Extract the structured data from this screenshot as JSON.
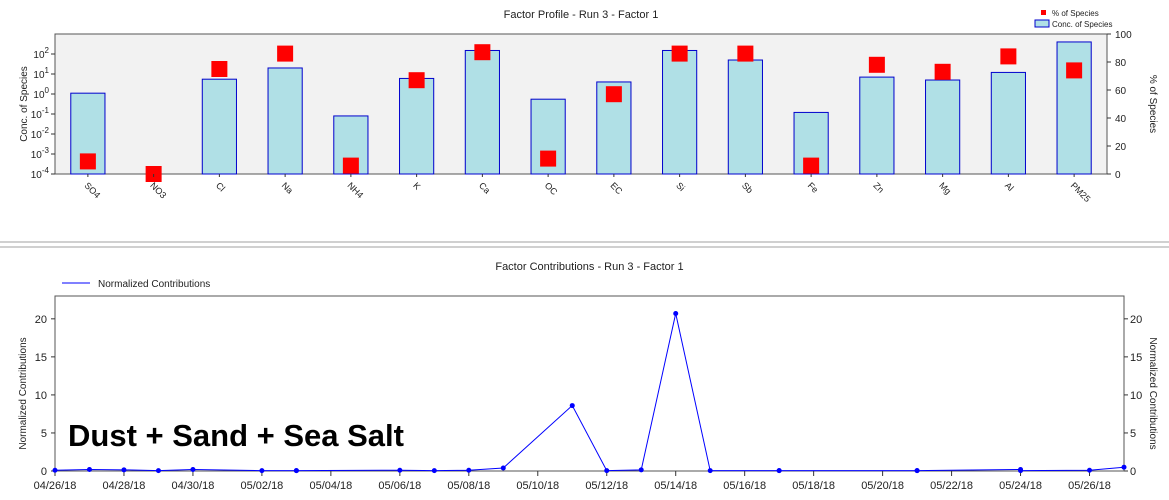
{
  "overlay_label": "Dust + Sand + Sea Salt",
  "colors": {
    "bar_fill": "#b0e0e6",
    "bar_stroke": "#0000cd",
    "marker": "#ff0000",
    "line": "#0000ff",
    "plot_bg": "#f2f2f2"
  },
  "chart_data": [
    {
      "type": "bar",
      "title": "Factor Profile - Run 3 - Factor 1",
      "ylabel": "Conc. of Species",
      "y2label": "% of Species",
      "yscale": "log",
      "ylim": [
        0.0001,
        1000
      ],
      "y_ticks": [
        {
          "value": 0.0001,
          "base": "10",
          "exp": "-4"
        },
        {
          "value": 0.001,
          "base": "10",
          "exp": "-3"
        },
        {
          "value": 0.01,
          "base": "10",
          "exp": "-2"
        },
        {
          "value": 0.1,
          "base": "10",
          "exp": "-1"
        },
        {
          "value": 1,
          "base": "10",
          "exp": "0"
        },
        {
          "value": 10,
          "base": "10",
          "exp": "1"
        },
        {
          "value": 100,
          "base": "10",
          "exp": "2"
        }
      ],
      "y2lim": [
        0,
        100
      ],
      "y2_ticks": [
        "0",
        "20",
        "40",
        "60",
        "80",
        "100"
      ],
      "categories": [
        "SO4",
        "NO3",
        "Cl",
        "Na",
        "NH4",
        "K",
        "Ca",
        "OC",
        "EC",
        "Si",
        "Sb",
        "Fe",
        "Zn",
        "Mg",
        "Al",
        "PM25"
      ],
      "series": [
        {
          "name": "Conc. of Species",
          "kind": "bar",
          "axis": "left",
          "values": [
            1.1,
            0.0001,
            5.5,
            20,
            0.08,
            6,
            150,
            0.55,
            4,
            150,
            50,
            0.12,
            7,
            5,
            12,
            400
          ]
        },
        {
          "name": "% of Species",
          "kind": "marker",
          "axis": "right",
          "values": [
            9,
            0,
            75,
            86,
            6,
            67,
            87,
            11,
            57,
            86,
            86,
            6,
            78,
            73,
            84,
            74
          ]
        }
      ],
      "legend": {
        "position": "top-right"
      },
      "grid": false
    },
    {
      "type": "line",
      "title": "Factor Contributions - Run 3 - Factor 1",
      "ylabel": "Normalized Contributions",
      "y2label": "Normalized Contributions",
      "ylim": [
        0,
        23
      ],
      "y_ticks": [
        "0",
        "5",
        "10",
        "15",
        "20"
      ],
      "x_ticks": [
        "04/26/18",
        "04/28/18",
        "04/30/18",
        "05/02/18",
        "05/04/18",
        "05/06/18",
        "05/08/18",
        "05/10/18",
        "05/12/18",
        "05/14/18",
        "05/16/18",
        "05/18/18",
        "05/20/18",
        "05/22/18",
        "05/24/18",
        "05/26/18"
      ],
      "xlim": [
        "2018-04-26",
        "2018-05-27"
      ],
      "series": [
        {
          "name": "Normalized Contributions",
          "x": [
            "2018-04-26",
            "2018-04-27",
            "2018-04-28",
            "2018-04-29",
            "2018-04-30",
            "2018-05-02",
            "2018-05-03",
            "2018-05-03",
            "2018-05-06",
            "2018-05-07",
            "2018-05-08",
            "2018-05-09",
            "2018-05-11",
            "2018-05-12",
            "2018-05-13",
            "2018-05-14",
            "2018-05-15",
            "2018-05-17",
            "2018-05-17",
            "2018-05-21",
            "2018-05-21",
            "2018-05-24",
            "2018-05-24",
            "2018-05-26",
            "2018-05-27"
          ],
          "y": [
            0.1,
            0.2,
            0.15,
            0.05,
            0.2,
            0.05,
            0.05,
            0.05,
            0.1,
            0.05,
            0.1,
            0.4,
            8.6,
            0.05,
            0.15,
            20.7,
            0.05,
            0.05,
            0.05,
            0.05,
            0.05,
            0.2,
            0.05,
            0.1,
            0.5
          ]
        }
      ],
      "legend": {
        "position": "top-left"
      },
      "grid": false
    }
  ]
}
